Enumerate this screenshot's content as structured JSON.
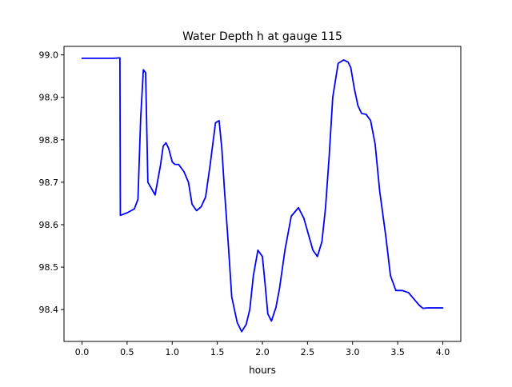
{
  "chart_data": {
    "type": "line",
    "title": "Water Depth h at gauge 115",
    "xlabel": "hours",
    "ylabel": "",
    "xlim": [
      -0.2,
      4.2
    ],
    "ylim": [
      98.325,
      99.02
    ],
    "xticks": [
      0.0,
      0.5,
      1.0,
      1.5,
      2.0,
      2.5,
      3.0,
      3.5,
      4.0
    ],
    "xtick_labels": [
      "0.0",
      "0.5",
      "1.0",
      "1.5",
      "2.0",
      "2.5",
      "3.0",
      "3.5",
      "4.0"
    ],
    "yticks": [
      98.4,
      98.5,
      98.6,
      98.7,
      98.8,
      98.9,
      99.0
    ],
    "ytick_labels": [
      "98.4",
      "98.5",
      "98.6",
      "98.7",
      "98.8",
      "98.9",
      "99.0"
    ],
    "grid": false,
    "legend": "none",
    "series": [
      {
        "color": "#0000ff",
        "x": [
          0.0,
          0.2,
          0.35,
          0.42,
          0.425,
          0.5,
          0.58,
          0.62,
          0.65,
          0.68,
          0.705,
          0.73,
          0.77,
          0.81,
          0.87,
          0.9,
          0.93,
          0.96,
          1.0,
          1.03,
          1.07,
          1.13,
          1.18,
          1.22,
          1.27,
          1.32,
          1.37,
          1.42,
          1.48,
          1.52,
          1.55,
          1.58,
          1.62,
          1.66,
          1.72,
          1.77,
          1.82,
          1.86,
          1.9,
          1.95,
          2.0,
          2.03,
          2.06,
          2.1,
          2.15,
          2.19,
          2.25,
          2.32,
          2.4,
          2.46,
          2.5,
          2.56,
          2.61,
          2.66,
          2.7,
          2.74,
          2.78,
          2.84,
          2.9,
          2.95,
          2.98,
          3.02,
          3.06,
          3.1,
          3.15,
          3.2,
          3.25,
          3.3,
          3.37,
          3.42,
          3.48,
          3.55,
          3.62,
          3.68,
          3.74,
          3.78,
          3.83,
          3.88,
          3.95,
          4.0
        ],
        "y": [
          98.992,
          98.992,
          98.992,
          98.993,
          98.622,
          98.628,
          98.637,
          98.66,
          98.85,
          98.965,
          98.958,
          98.7,
          98.685,
          98.67,
          98.74,
          98.785,
          98.793,
          98.78,
          98.748,
          98.742,
          98.742,
          98.725,
          98.7,
          98.648,
          98.633,
          98.642,
          98.665,
          98.74,
          98.84,
          98.845,
          98.78,
          98.68,
          98.56,
          98.43,
          98.37,
          98.348,
          98.365,
          98.4,
          98.48,
          98.54,
          98.525,
          98.46,
          98.39,
          98.373,
          98.405,
          98.45,
          98.54,
          98.62,
          98.64,
          98.615,
          98.585,
          98.54,
          98.525,
          98.56,
          98.64,
          98.76,
          98.9,
          98.98,
          98.988,
          98.983,
          98.97,
          98.92,
          98.88,
          98.862,
          98.86,
          98.845,
          98.79,
          98.68,
          98.57,
          98.48,
          98.445,
          98.445,
          98.44,
          98.425,
          98.41,
          98.403,
          98.404,
          98.404,
          98.404,
          98.404
        ]
      }
    ]
  }
}
